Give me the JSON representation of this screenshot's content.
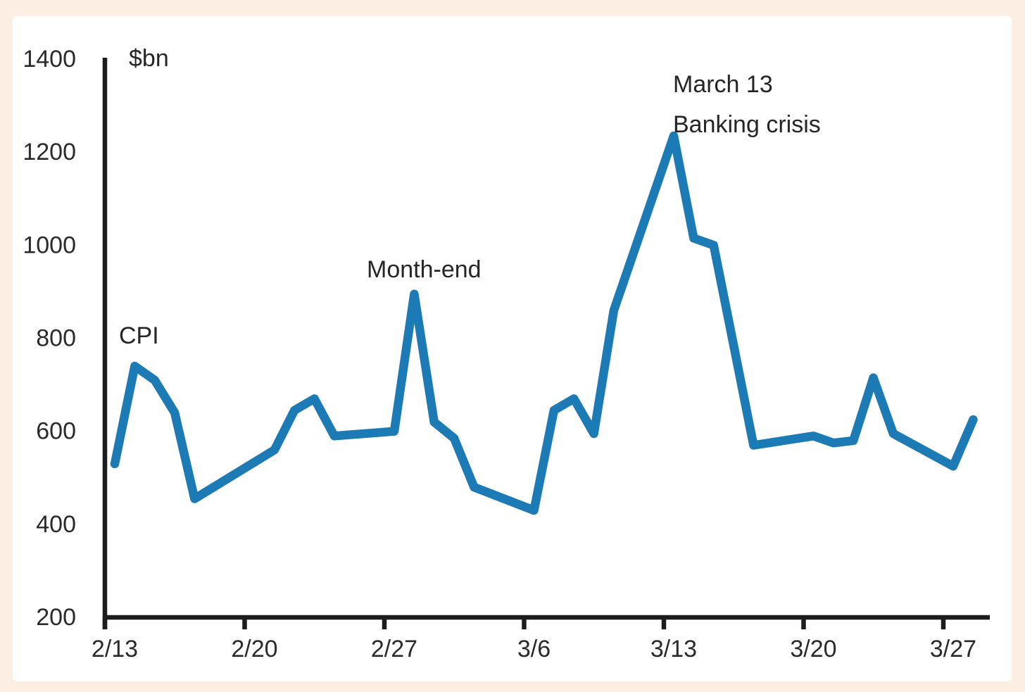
{
  "chart_data": {
    "type": "line",
    "title": "",
    "xlabel": "",
    "ylabel": "$bn",
    "ylim": [
      200,
      1400
    ],
    "grid": false,
    "legend": false,
    "y_tick_labels": [
      "200",
      "400",
      "600",
      "800",
      "1000",
      "1200",
      "1400"
    ],
    "y_tick_values": [
      200,
      400,
      600,
      800,
      1000,
      1200,
      1400
    ],
    "x_tick_labels": [
      "2/13",
      "2/20",
      "2/27",
      "3/6",
      "3/13",
      "3/20",
      "3/27"
    ],
    "x_tick_week_index": [
      0,
      1,
      2,
      3,
      4,
      5,
      6
    ],
    "series": {
      "dates": [
        "2/13",
        "2/14",
        "2/15",
        "2/16",
        "2/17",
        "2/21",
        "2/22",
        "2/23",
        "2/24",
        "2/27",
        "2/28",
        "3/1",
        "3/2",
        "3/3",
        "3/6",
        "3/7",
        "3/8",
        "3/9",
        "3/10",
        "3/13",
        "3/14",
        "3/15",
        "3/16",
        "3/17",
        "3/20",
        "3/21",
        "3/22",
        "3/23",
        "3/24",
        "3/27",
        "3/28"
      ],
      "day_offsets": [
        0,
        1,
        2,
        3,
        4,
        8,
        9,
        10,
        11,
        14,
        15,
        16,
        17,
        18,
        21,
        22,
        23,
        24,
        25,
        28,
        29,
        30,
        31,
        32,
        35,
        36,
        37,
        38,
        39,
        42,
        43
      ],
      "values": [
        530,
        740,
        710,
        640,
        455,
        560,
        645,
        670,
        590,
        600,
        895,
        620,
        585,
        480,
        430,
        645,
        670,
        595,
        860,
        1235,
        1015,
        1000,
        785,
        570,
        590,
        575,
        580,
        715,
        595,
        525,
        625
      ]
    },
    "annotations": [
      {
        "id": "cpi",
        "lines": [
          "CPI"
        ],
        "anchor_date": "2/14",
        "anchor_value": 740
      },
      {
        "id": "month-end",
        "lines": [
          "Month-end"
        ],
        "anchor_date": "2/28",
        "anchor_value": 895
      },
      {
        "id": "march-13-banking-crisis",
        "lines": [
          "March 13",
          "Banking crisis"
        ],
        "anchor_date": "3/13",
        "anchor_value": 1235
      }
    ],
    "colors": {
      "line": "#1c7ab5",
      "axis": "#1d1d1d",
      "tick_text": "#2b2b2b",
      "annotation_text": "#262626",
      "plot_background": "#ffffff",
      "page_background": "#fdeee4"
    }
  }
}
